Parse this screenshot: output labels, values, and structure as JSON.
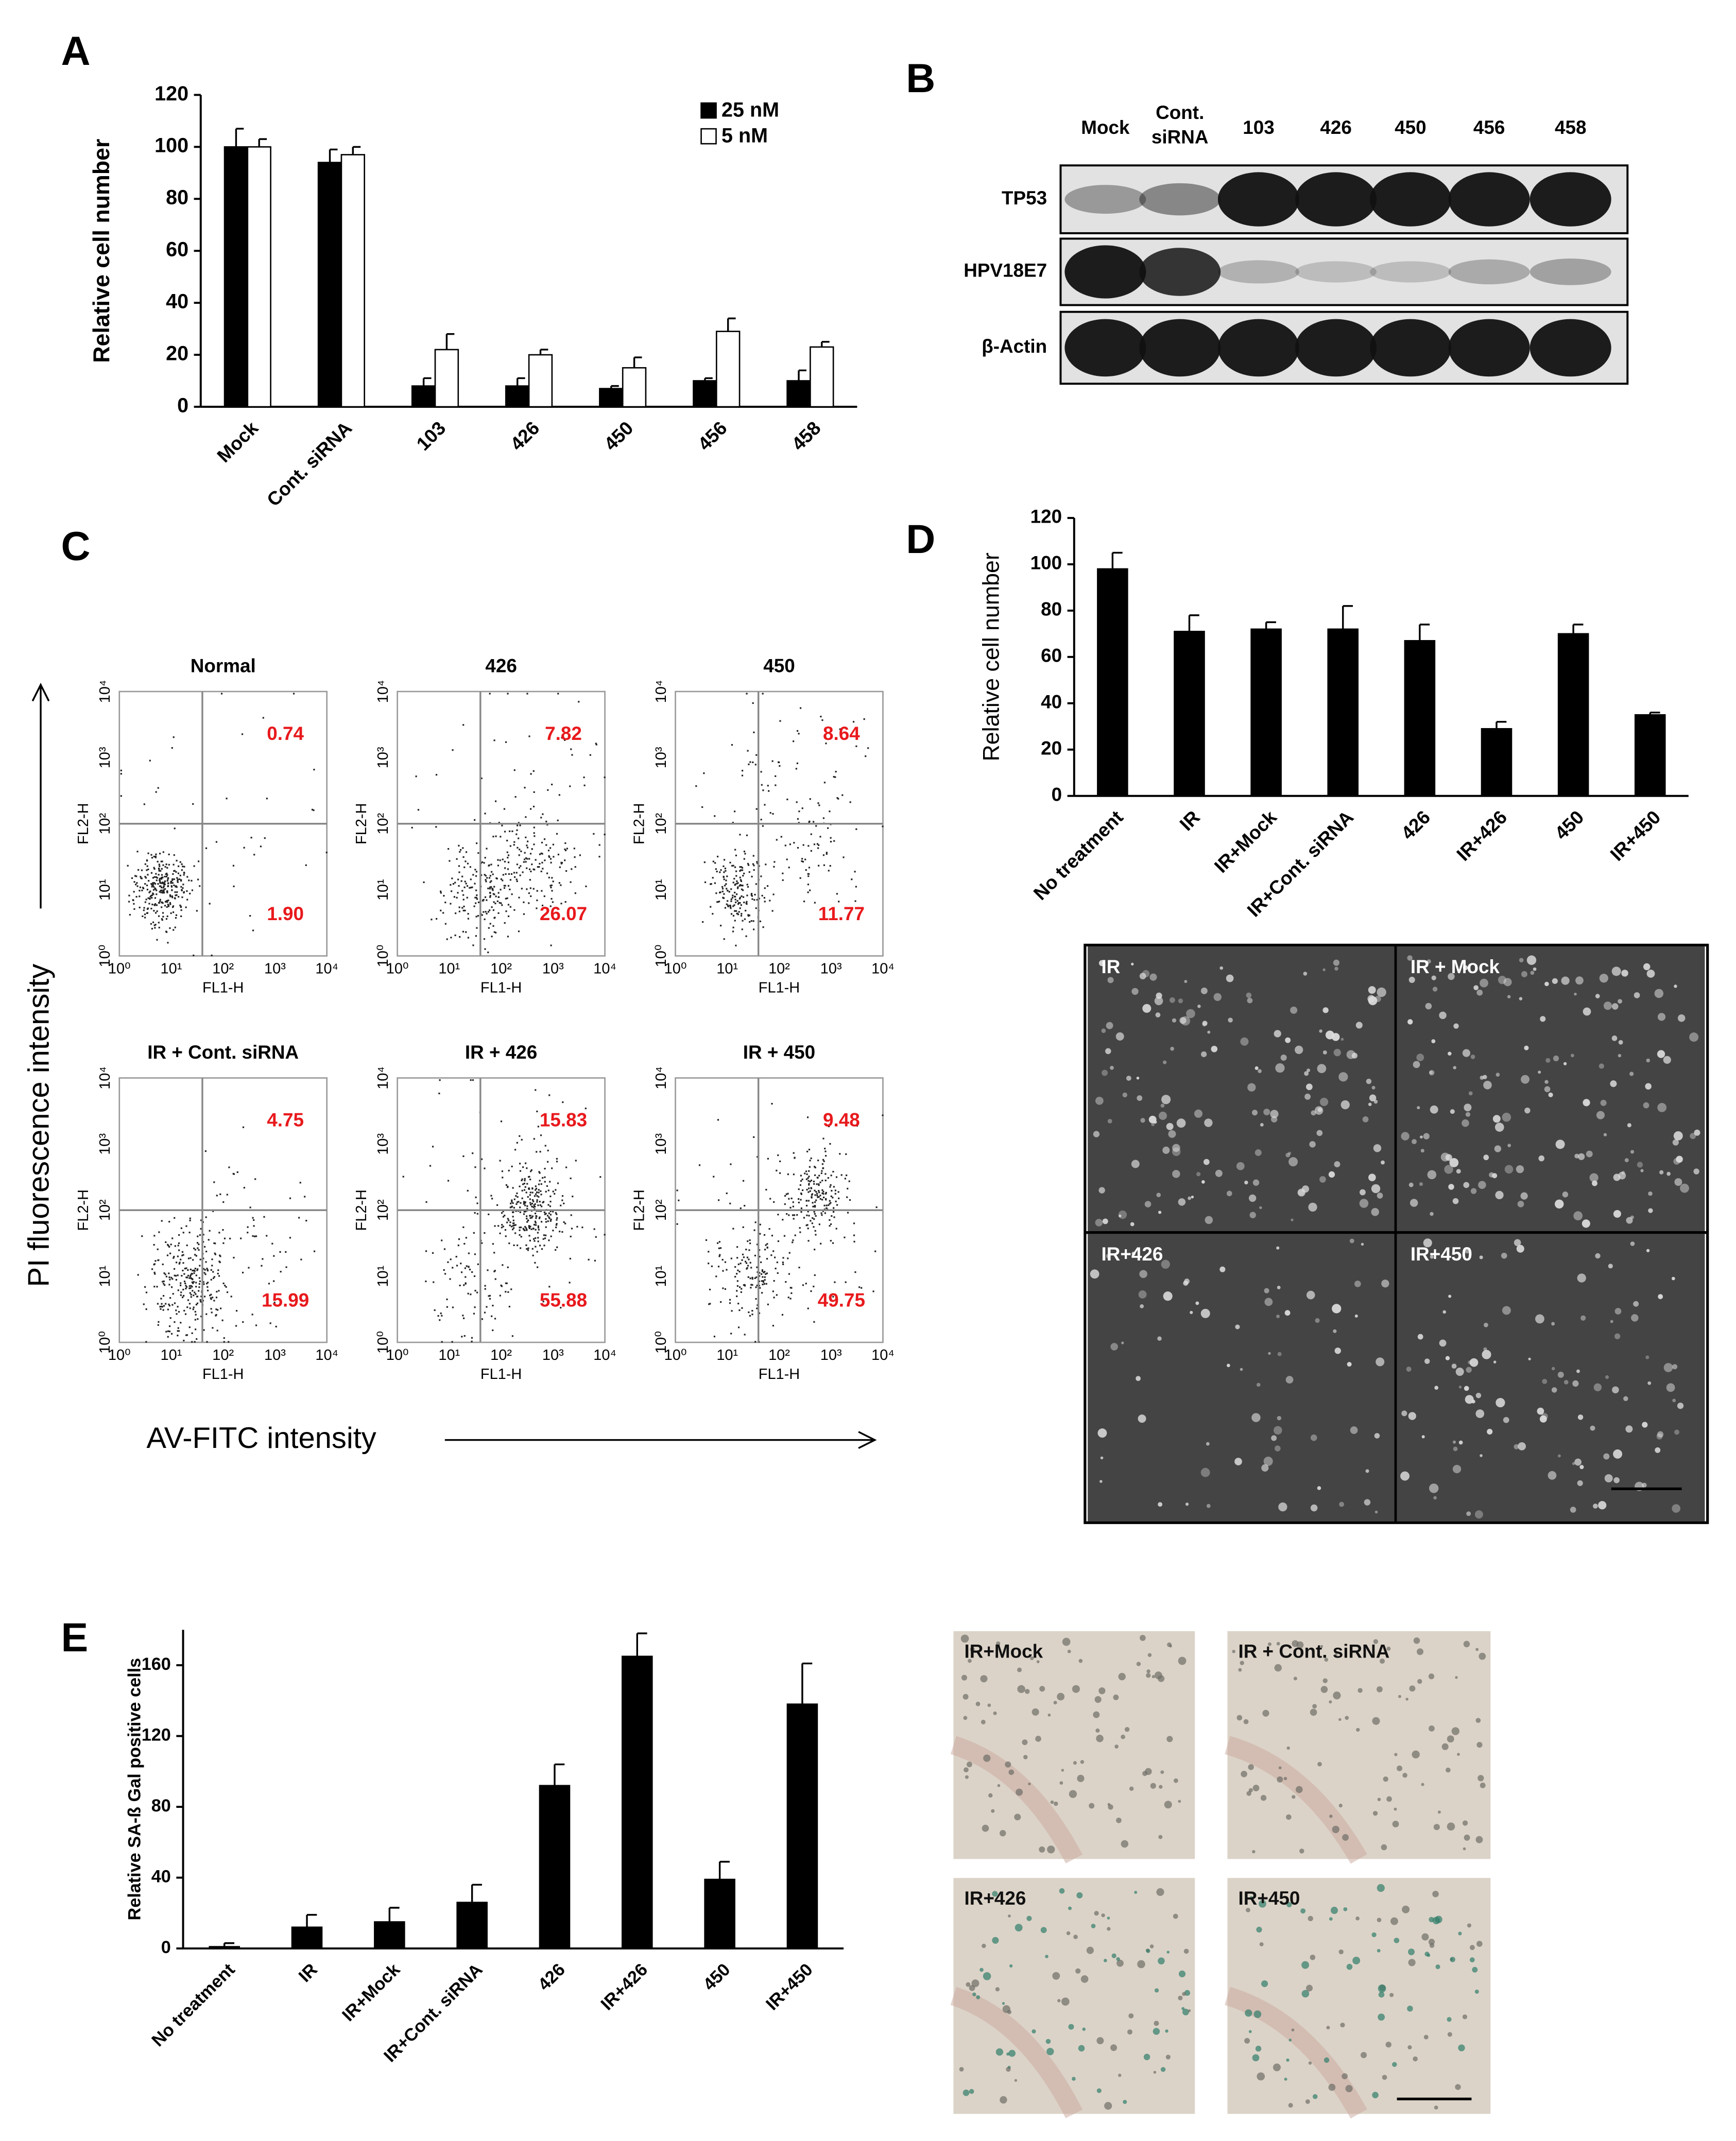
{
  "panel_labels": [
    "A",
    "B",
    "C",
    "D",
    "E"
  ],
  "chart_data": [
    {
      "type": "bar",
      "ylabel": "Relative cell number",
      "categories": [
        "Mock",
        "Cont. siRNA",
        "103",
        "426",
        "450",
        "456",
        "458"
      ],
      "series": [
        {
          "name": "25 nM",
          "color": "#000000",
          "values": [
            100,
            94,
            8,
            8,
            7,
            10,
            10
          ],
          "errors": [
            7,
            5,
            3,
            3,
            1,
            1,
            4
          ]
        },
        {
          "name": "5 nM",
          "color": "#ffffff",
          "values": [
            100,
            97,
            22,
            20,
            15,
            29,
            23
          ],
          "errors": [
            3,
            3,
            6,
            2,
            4,
            5,
            2
          ]
        }
      ],
      "ylim": [
        0,
        120
      ],
      "yticks": [
        0,
        20,
        40,
        60,
        80,
        100,
        120
      ],
      "legend": "upper right"
    },
    {
      "type": "bar",
      "ylabel": "Relative cell number",
      "categories": [
        "No treatment",
        "IR",
        "IR+Mock",
        "IR+Cont. siRNA",
        "426",
        "IR+426",
        "450",
        "IR+450"
      ],
      "values": [
        98,
        71,
        72,
        72,
        67,
        29,
        70,
        35
      ],
      "errors": [
        7,
        7,
        3,
        10,
        7,
        3,
        4,
        1
      ],
      "color": "#000000",
      "ylim": [
        0,
        120
      ],
      "yticks": [
        0,
        20,
        40,
        60,
        80,
        100,
        120
      ]
    },
    {
      "type": "bar",
      "ylabel": "Relative SA-ß Gal positive cells",
      "categories": [
        "No treatment",
        "IR",
        "IR+Mock",
        "IR+Cont. siRNA",
        "426",
        "IR+426",
        "450",
        "IR+450"
      ],
      "values": [
        1,
        12,
        15,
        26,
        92,
        165,
        39,
        138
      ],
      "errors": [
        2,
        7,
        8,
        10,
        12,
        13,
        10,
        23
      ],
      "color": "#000000",
      "ylim": [
        0,
        180
      ],
      "yticks": [
        0,
        40,
        80,
        120,
        160
      ]
    }
  ],
  "blot": {
    "lanes": [
      [
        "Mock"
      ],
      [
        "Cont.",
        "siRNA"
      ],
      [
        "103"
      ],
      [
        "426"
      ],
      [
        "450"
      ],
      [
        "456"
      ],
      [
        "458"
      ]
    ],
    "rows": [
      "TP53",
      "HPV18E7",
      "β-Actin"
    ]
  },
  "flow": {
    "y_title": "PI fluorescence intensity",
    "x_title": "AV-FITC  intensity",
    "x_axis": "FL1-H",
    "y_axis": "FL2-H",
    "ticks": [
      "10⁰",
      "10¹",
      "10²",
      "10³",
      "10⁴"
    ],
    "plots": [
      {
        "title": "Normal",
        "upper_right": "0.74",
        "lower_right": "1.90"
      },
      {
        "title": "426",
        "upper_right": "7.82",
        "lower_right": "26.07"
      },
      {
        "title": "450",
        "upper_right": "8.64",
        "lower_right": "11.77"
      },
      {
        "title": "IR + Cont. siRNA",
        "upper_right": "4.75",
        "lower_right": "15.99"
      },
      {
        "title": "IR + 426",
        "upper_right": "15.83",
        "lower_right": "55.88"
      },
      {
        "title": "IR + 450",
        "upper_right": "9.48",
        "lower_right": "49.75"
      }
    ]
  },
  "micrographs_d": [
    "IR",
    "IR + Mock",
    "IR+426",
    "IR+450"
  ],
  "micrographs_e": [
    "IR+Mock",
    "IR + Cont. siRNA",
    "IR+426",
    "IR+450"
  ]
}
